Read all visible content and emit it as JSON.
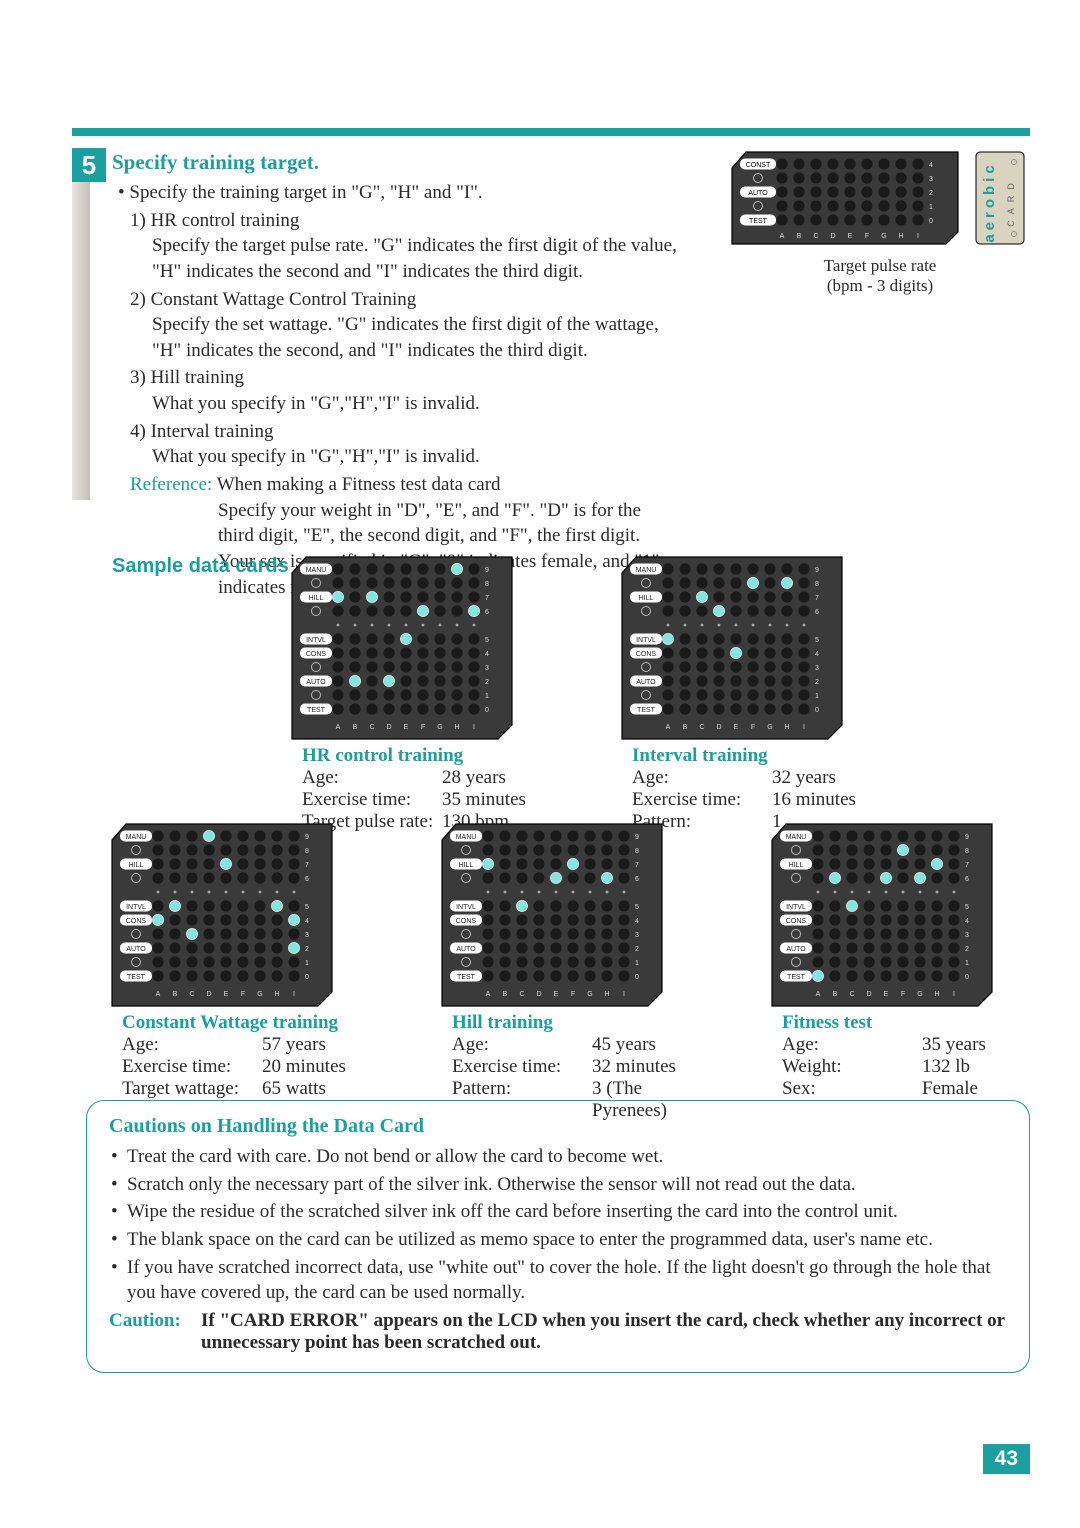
{
  "colors": {
    "accent": "#1c9f9f",
    "text": "#2a2a2a",
    "card_bg": "#3a3a3a",
    "card_cream": "#d8d4c0",
    "dot_off": "#1a1a1a",
    "dot_on": "#82e6de",
    "card_label_bg": "#ffffff"
  },
  "page_number": "43",
  "step": {
    "number": "5",
    "title": "Specify training target.",
    "bullet": "Specify the training target in \"G\", \"H\" and \"I\".",
    "items": [
      {
        "num": "1) ",
        "head": "HR control training",
        "lines": [
          "Specify the target pulse rate. \"G\" indicates the first digit of the value, \"H\" indicates the second and \"I\" indicates the third digit."
        ]
      },
      {
        "num": "2) ",
        "head": "Constant Wattage Control Training",
        "lines": [
          "Specify the set wattage. \"G\" indicates the first digit of the wattage, \"H\" indicates the second, and \"I\" indicates the third digit."
        ]
      },
      {
        "num": "3) ",
        "head": "Hill training",
        "lines": [
          "What you specify in \"G\",\"H\",\"I\" is invalid."
        ]
      },
      {
        "num": "4) ",
        "head": "Interval training",
        "lines": [
          "What you specify in \"G\",\"H\",\"I\" is invalid."
        ]
      }
    ],
    "reference_label": "Reference:",
    "reference_head": "When making a Fitness test data card",
    "reference_body": "Specify your weight in \"D\", \"E\", and \"F\". \"D\" is for the third digit, \"E\", the second digit, and \"F\", the first digit. Your sex is specified in \"G\". \"0\" indicates female, and \"1\" indicates male."
  },
  "target_card": {
    "caption1": "Target pulse rate",
    "caption2": "(bpm - 3 digits)",
    "row_labels": [
      "CONST",
      "",
      "AUTO",
      "",
      "TEST"
    ],
    "right_nums": [
      "4",
      "3",
      "2",
      "1",
      "0"
    ],
    "col_letters": [
      "A",
      "B",
      "C",
      "D",
      "E",
      "F",
      "G",
      "H",
      "I"
    ],
    "punched": [],
    "side_logo": "CARD"
  },
  "sample_data_cards_title": "Sample data cards",
  "card_template": {
    "row_labels": [
      "MANU",
      "",
      "HILL",
      "",
      "",
      "INTVL",
      "CONS",
      "",
      "AUTO",
      "",
      "TEST"
    ],
    "right_nums": [
      "9",
      "8",
      "7",
      "6",
      "",
      "5",
      "4",
      "3",
      "2",
      "1",
      "0"
    ],
    "col_letters": [
      "A",
      "B",
      "C",
      "D",
      "E",
      "F",
      "G",
      "H",
      "I"
    ],
    "dots_row_idx": 4
  },
  "samples_row1": [
    {
      "title": "HR control training",
      "fields": [
        {
          "k": "Age:",
          "v": "28 years"
        },
        {
          "k": "Exercise time:",
          "v": "35 minutes"
        },
        {
          "k": "Target pulse rate:",
          "v": "130 bpm"
        }
      ],
      "punched": [
        [
          8,
          1
        ],
        [
          2,
          2
        ],
        [
          8,
          3
        ],
        [
          5,
          4
        ],
        [
          3,
          5
        ],
        [
          0,
          7
        ],
        [
          3,
          8
        ],
        [
          1,
          9
        ],
        [
          2,
          0
        ]
      ]
    },
    {
      "title": "Interval training",
      "fields": [
        {
          "k": "Age:",
          "v": "32 years"
        },
        {
          "k": "Exercise time:",
          "v": "16 minutes"
        },
        {
          "k": "Pattern:",
          "v": "1"
        }
      ],
      "punched": [
        [
          5,
          0
        ],
        [
          2,
          2
        ],
        [
          3,
          3
        ],
        [
          6,
          4
        ],
        [
          1,
          5
        ],
        [
          1,
          7
        ],
        [
          1,
          10
        ]
      ]
    }
  ],
  "samples_row2": [
    {
      "title": "Constant Wattage training",
      "fields": [
        {
          "k": "Age:",
          "v": "57 years"
        },
        {
          "k": "Exercise time:",
          "v": "20 minutes"
        },
        {
          "k": "Target wattage:",
          "v": "65 watts"
        }
      ],
      "punched": [
        [
          6,
          0
        ],
        [
          5,
          1
        ],
        [
          7,
          2
        ],
        [
          0,
          3
        ],
        [
          2,
          4
        ],
        [
          5,
          7
        ],
        [
          6,
          8
        ],
        [
          0,
          9
        ],
        [
          8,
          8
        ]
      ]
    },
    {
      "title": "Hill training",
      "fields": [
        {
          "k": "Age:",
          "v": "45 years"
        },
        {
          "k": "Exercise time:",
          "v": "32 minutes"
        },
        {
          "k": "Pattern:",
          "v": "3 (The Pyrenees)"
        }
      ],
      "punched": [
        [
          2,
          0
        ],
        [
          4,
          1
        ],
        [
          5,
          2
        ],
        [
          3,
          4
        ],
        [
          2,
          5
        ],
        [
          3,
          7
        ],
        [
          0,
          9
        ]
      ]
    },
    {
      "title": "Fitness test",
      "fields": [
        {
          "k": "Age:",
          "v": "35 years"
        },
        {
          "k": "Weight:",
          "v": "132 lb"
        },
        {
          "k": "Sex:",
          "v": "Female"
        }
      ],
      "punched": [
        [
          10,
          0
        ],
        [
          3,
          1
        ],
        [
          5,
          2
        ],
        [
          3,
          4
        ],
        [
          1,
          5
        ],
        [
          3,
          6
        ],
        [
          2,
          7
        ],
        [
          0,
          9
        ]
      ]
    }
  ],
  "cautions": {
    "title": "Cautions on Handling the Data Card",
    "items": [
      "Treat the card with care. Do not bend or allow the card to become wet.",
      "Scratch only the necessary part of the silver ink. Otherwise the sensor will not read out the data.",
      "Wipe the residue of the scratched silver ink off the card before inserting the card into the control unit.",
      "The blank space on the card can be utilized as memo space to enter the programmed data, user's name etc.",
      "If you have scratched incorrect data, use \"white out\" to cover the hole. If the light doesn't go through the hole that you have covered up, the card can be used normally."
    ],
    "caution_label": "Caution:",
    "caution_text": "If \"CARD ERROR\" appears on the LCD when you insert the card, check whether any incorrect or unnecessary point has been scratched out."
  }
}
